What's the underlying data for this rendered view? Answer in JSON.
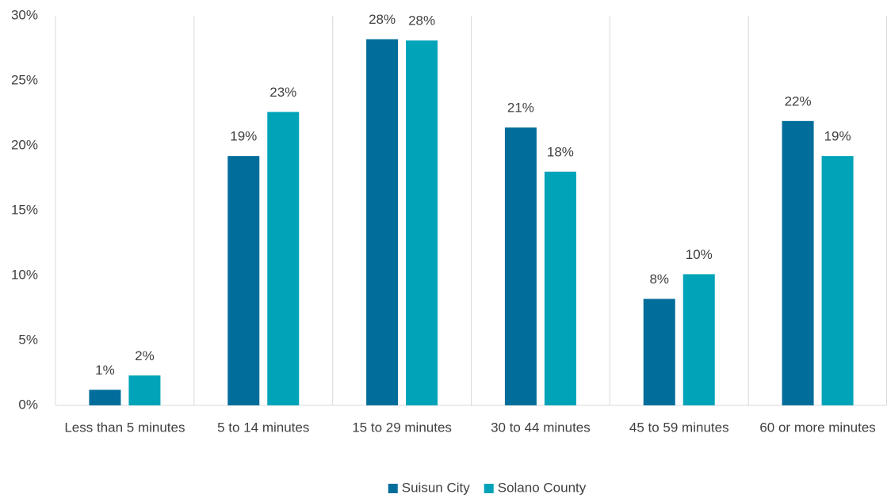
{
  "chart_data": {
    "type": "bar",
    "categories": [
      "Less than 5 minutes",
      "5 to 14 minutes",
      "15 to 29 minutes",
      "30 to 44 minutes",
      "45 to 59 minutes",
      "60 or more minutes"
    ],
    "series": [
      {
        "name": "Suisun City",
        "color": "#006d9b",
        "values": [
          1.2,
          19.2,
          28.2,
          21.4,
          8.2,
          21.9
        ],
        "value_labels": [
          "1%",
          "19%",
          "28%",
          "21%",
          "8%",
          "22%"
        ]
      },
      {
        "name": "Solano County",
        "color": "#00a3b8",
        "values": [
          2.3,
          22.6,
          28.1,
          18.0,
          10.1,
          19.2
        ],
        "value_labels": [
          "2%",
          "23%",
          "28%",
          "18%",
          "10%",
          "19%"
        ]
      }
    ],
    "ylim": [
      0,
      30
    ],
    "yticks": [
      {
        "value": 0,
        "label": "0%"
      },
      {
        "value": 5,
        "label": "5%"
      },
      {
        "value": 10,
        "label": "10%"
      },
      {
        "value": 15,
        "label": "15%"
      },
      {
        "value": 20,
        "label": "20%"
      },
      {
        "value": 25,
        "label": "25%"
      },
      {
        "value": 30,
        "label": "30%"
      }
    ],
    "grid": false,
    "legend": "bottom"
  }
}
